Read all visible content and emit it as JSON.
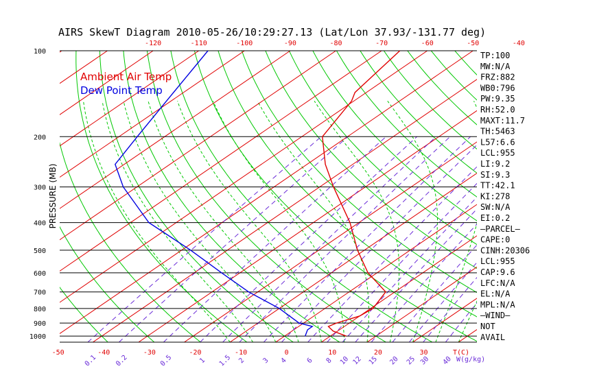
{
  "chart_data": {
    "type": "line",
    "title": "AIRS SkewT Diagram 2010-05-26/10:29:27.13 (Lat/Lon 37.93/-131.77 deg)",
    "ylabel": "PRESSURE (MB)",
    "y_scale": "log",
    "ylim": [
      1050,
      100
    ],
    "y_ticks": [
      100,
      200,
      300,
      400,
      500,
      600,
      700,
      800,
      900,
      1000
    ],
    "bottom_temp_ticks": [
      -50,
      -40,
      -30,
      -20,
      -10,
      0,
      10,
      20,
      30
    ],
    "bottom_axis_unit": "T(C)",
    "top_temp_ticks": [
      -120,
      -110,
      -100,
      -90,
      -80,
      -70,
      -60,
      -50,
      -40
    ],
    "mixing_ratio_ticks": [
      "0.1",
      "0.2",
      "0.5",
      "1",
      "1.5",
      "2",
      "3",
      "4",
      "6",
      "8",
      "10",
      "12",
      "15",
      "20",
      "25",
      "30",
      "40"
    ],
    "mixing_ratio_unit": "W(g/kg)",
    "legend": [
      {
        "label": "Ambient Air Temp",
        "color": "#e00000"
      },
      {
        "label": "Dew Point Temp",
        "color": "#0000e0"
      }
    ],
    "series": [
      {
        "name": "Ambient Air Temp",
        "color": "#e00000",
        "points": [
          [
            1000,
            13.5
          ],
          [
            960,
            9.0
          ],
          [
            925,
            6.5
          ],
          [
            900,
            7.2
          ],
          [
            850,
            10.0
          ],
          [
            800,
            10.5
          ],
          [
            700,
            8.0
          ],
          [
            600,
            -2.0
          ],
          [
            500,
            -11.5
          ],
          [
            400,
            -22.0
          ],
          [
            300,
            -37.0
          ],
          [
            250,
            -46.0
          ],
          [
            200,
            -55.5
          ],
          [
            150,
            -60.5
          ],
          [
            140,
            -62.5
          ],
          [
            100,
            -66.0
          ]
        ]
      },
      {
        "name": "Dew Point Temp",
        "color": "#0000e0",
        "points": [
          [
            1000,
            4.5
          ],
          [
            950,
            3.0
          ],
          [
            925,
            3.0
          ],
          [
            900,
            -1.0
          ],
          [
            800,
            -10.0
          ],
          [
            700,
            -22.0
          ],
          [
            600,
            -34.0
          ],
          [
            500,
            -48.0
          ],
          [
            400,
            -66.0
          ],
          [
            300,
            -83.0
          ],
          [
            250,
            -92.0
          ],
          [
            200,
            -96.0
          ],
          [
            150,
            -101.0
          ],
          [
            100,
            -108.0
          ]
        ]
      }
    ]
  },
  "indices": [
    "TP:100",
    "MW:N/A",
    "FRZ:882",
    "WB0:796",
    "PW:9.35",
    "RH:52.0",
    "MAXT:11.7",
    "TH:5463",
    "L57:6.6",
    "LCL:955",
    "LI:9.2",
    "SI:9.3",
    "TT:42.1",
    "KI:278",
    "SW:N/A",
    "EI:0.2",
    "—PARCEL—",
    "CAPE:0",
    "CINH:20306",
    "LCL:955",
    "CAP:9.6",
    "LFC:N/A",
    "EL:N/A",
    "MPL:N/A",
    "—WIND—",
    " NOT",
    " AVAIL"
  ],
  "colors": {
    "isotherm": "#e00000",
    "dry_adiabat": "#00c800",
    "moist_adiabat": "#00c800",
    "mixing_ratio": "#6a2bd8",
    "isobar": "#000000",
    "temp": "#e00000",
    "dewpoint": "#0000e0",
    "tick_labels": "#e00000"
  }
}
